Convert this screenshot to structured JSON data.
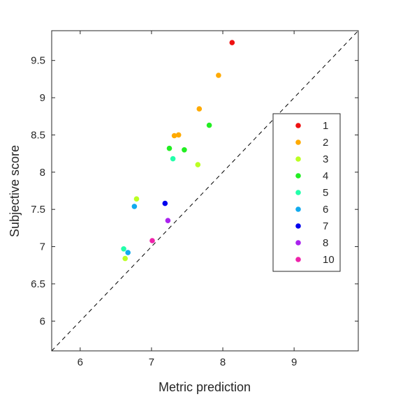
{
  "chart_data": {
    "type": "scatter",
    "title": "",
    "xlabel": "Metric prediction",
    "ylabel": "Subjective score",
    "xlim": [
      5.6,
      9.9
    ],
    "ylim": [
      5.6,
      9.9
    ],
    "xticks": [
      6,
      7,
      8,
      9
    ],
    "yticks": [
      6,
      6.5,
      7,
      7.5,
      8,
      8.5,
      9,
      9.5
    ],
    "xtick_labels": [
      "6",
      "7",
      "8",
      "9"
    ],
    "ytick_labels": [
      "6",
      "6.5",
      "7",
      "7.5",
      "8",
      "8.5",
      "9",
      "9.5"
    ],
    "grid": false,
    "legend_position": "right",
    "reference_line": {
      "style": "dashed",
      "color": "#000000",
      "from": [
        5.6,
        5.6
      ],
      "to": [
        9.9,
        9.9
      ]
    },
    "series": [
      {
        "name": "1",
        "color": "#ee1111",
        "points": [
          [
            8.13,
            9.74
          ]
        ]
      },
      {
        "name": "2",
        "color": "#ffaa00",
        "points": [
          [
            7.94,
            9.3
          ],
          [
            7.67,
            8.85
          ],
          [
            7.32,
            8.49
          ],
          [
            7.38,
            8.5
          ]
        ]
      },
      {
        "name": "3",
        "color": "#bbff22",
        "points": [
          [
            7.65,
            8.1
          ],
          [
            6.79,
            7.64
          ],
          [
            6.63,
            6.84
          ]
        ]
      },
      {
        "name": "4",
        "color": "#22ee22",
        "points": [
          [
            7.81,
            8.63
          ],
          [
            7.25,
            8.32
          ],
          [
            7.46,
            8.3
          ]
        ]
      },
      {
        "name": "5",
        "color": "#22ffaa",
        "points": [
          [
            7.3,
            8.18
          ],
          [
            6.61,
            6.97
          ]
        ]
      },
      {
        "name": "6",
        "color": "#11aaee",
        "points": [
          [
            6.76,
            7.54
          ],
          [
            6.67,
            6.92
          ]
        ]
      },
      {
        "name": "7",
        "color": "#0000ee",
        "points": [
          [
            7.19,
            7.58
          ]
        ]
      },
      {
        "name": "8",
        "color": "#aa22ee",
        "points": [
          [
            7.23,
            7.35
          ]
        ]
      },
      {
        "name": "10",
        "color": "#ee22aa",
        "points": [
          [
            7.01,
            7.08
          ]
        ]
      }
    ]
  }
}
